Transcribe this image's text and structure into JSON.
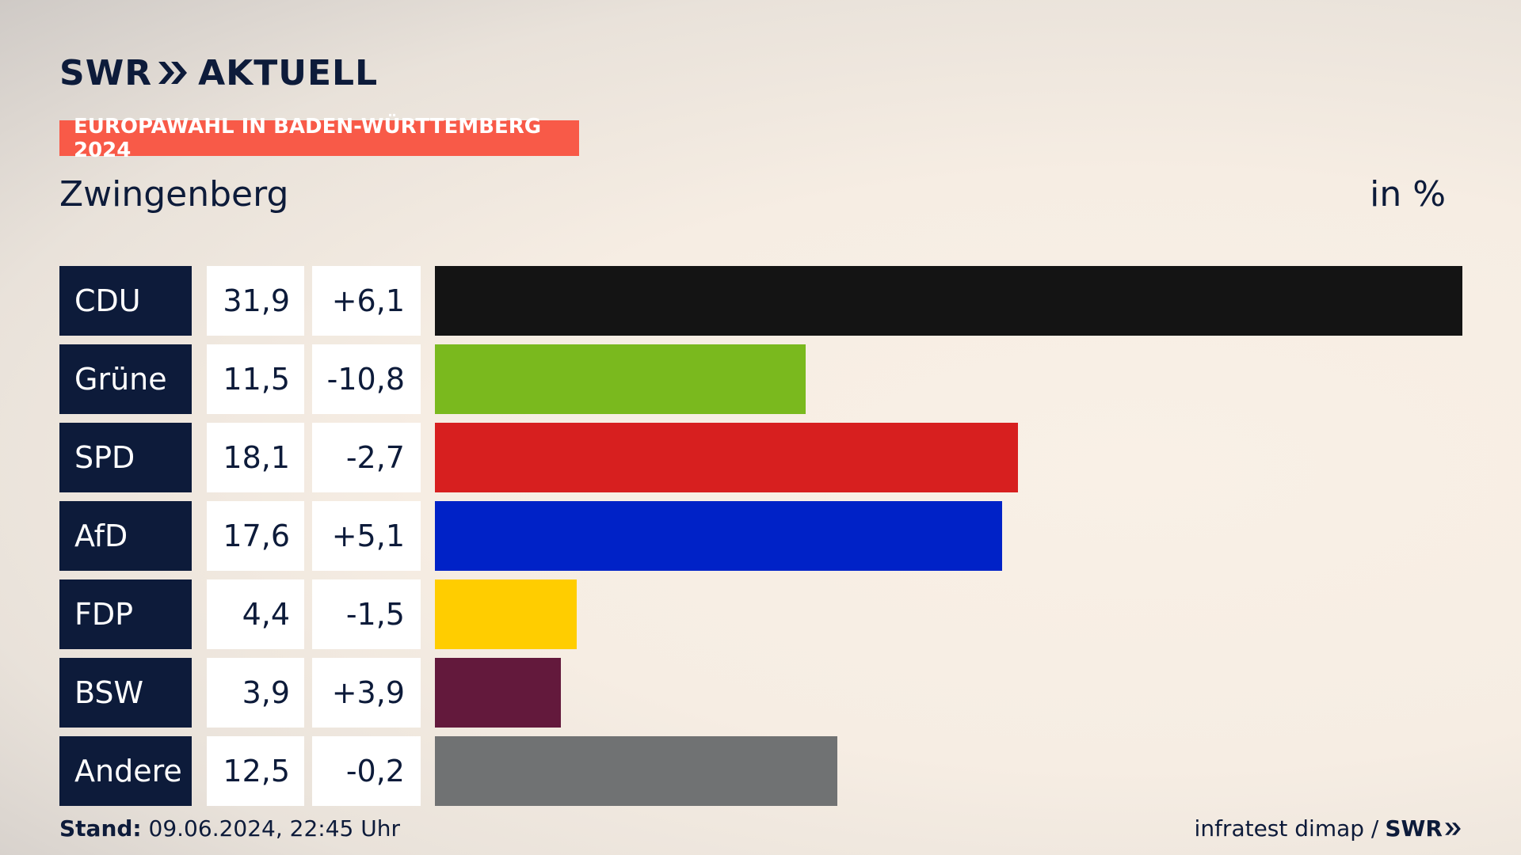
{
  "header": {
    "brand_left": "SWR",
    "brand_right": "AKTUELL",
    "badge": "EUROPAWAHL IN BADEN-WÜRTTEMBERG 2024",
    "badge_color": "#f85a48"
  },
  "region": "Zwingenberg",
  "unit": "in %",
  "chart_data": {
    "type": "bar",
    "orientation": "horizontal",
    "categories": [
      "CDU",
      "Grüne",
      "SPD",
      "AfD",
      "FDP",
      "BSW",
      "Andere"
    ],
    "values": [
      31.9,
      11.5,
      18.1,
      17.6,
      4.4,
      3.9,
      12.5
    ],
    "value_labels": [
      "31,9",
      "11,5",
      "18,1",
      "17,6",
      "4,4",
      "3,9",
      "12,5"
    ],
    "changes": [
      6.1,
      -10.8,
      -2.7,
      5.1,
      -1.5,
      3.9,
      -0.2
    ],
    "change_labels": [
      "+6,1",
      "-10,8",
      "-2,7",
      "+5,1",
      "-1,5",
      "+3,9",
      "-0,2"
    ],
    "colors": [
      "#141414",
      "#7ab91e",
      "#d71f1f",
      "#0022c7",
      "#ffcd00",
      "#63193c",
      "#707273"
    ],
    "unit": "in %",
    "grid": false,
    "legend": "none"
  },
  "footer": {
    "stand_label": "Stand:",
    "stand_value": "09.06.2024, 22:45 Uhr",
    "source": "infratest dimap /",
    "source_brand": "SWR"
  }
}
